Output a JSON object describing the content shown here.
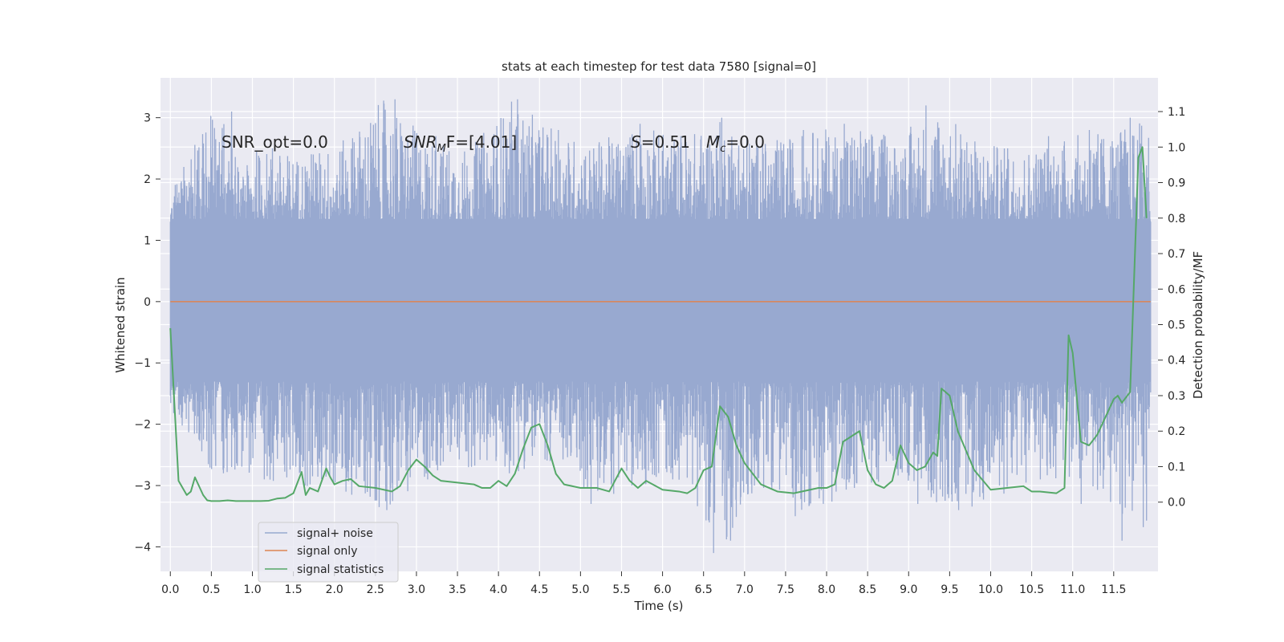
{
  "chart_data": {
    "type": "line",
    "title": "stats at each timestep for test data 7580 [signal=0]",
    "xlabel": "Time (s)",
    "ylabel_left": "Whitened strain",
    "ylabel_right": "Detection probability/MF",
    "xlim": [
      -0.12,
      12.04
    ],
    "ylim_left": [
      -4.4,
      3.65
    ],
    "ylim_right": [
      -0.195,
      1.195
    ],
    "x_ticks": [
      "0.0",
      "0.5",
      "1.0",
      "1.5",
      "2.0",
      "2.5",
      "3.0",
      "3.5",
      "4.0",
      "4.5",
      "5.0",
      "5.5",
      "6.0",
      "6.5",
      "7.0",
      "7.5",
      "8.0",
      "8.5",
      "9.0",
      "9.5",
      "10.0",
      "10.5",
      "11.0",
      "11.5"
    ],
    "y_ticks_left": [
      "3",
      "2",
      "1",
      "0",
      "−1",
      "−2",
      "−3",
      "−4"
    ],
    "y_ticks_right": [
      "1.1",
      "1.0",
      "0.9",
      "0.8",
      "0.7",
      "0.6",
      "0.5",
      "0.4",
      "0.3",
      "0.2",
      "0.1",
      "0.0"
    ],
    "grid": true,
    "legend_position": "lower-left",
    "annotations": {
      "snr_opt": "SNR_opt=0.0",
      "snr_mf_main": "SNR",
      "snr_mf_sub": "M",
      "snr_mf_rest": "F=[4.01]",
      "s_main": "S",
      "s_rest": "=0.51",
      "mc_main": "M",
      "mc_sub": "c",
      "mc_rest": "=0.0"
    },
    "series": [
      {
        "name": "signal+ noise",
        "color": "#98a9d0",
        "note": "noise envelope, t from 0 to 11.95 s",
        "x_range": [
          0.0,
          11.95
        ],
        "upper_env": [
          1.9,
          3.1,
          2.5,
          2.4,
          2.6,
          3.3,
          2.7,
          2.5,
          3.3,
          2.8,
          2.6,
          2.9,
          2.7,
          3.0,
          2.6,
          2.8,
          2.9,
          2.7,
          3.2,
          2.6,
          2.5,
          2.7,
          2.8,
          3.0
        ],
        "lower_env": [
          -1.8,
          -2.8,
          -2.9,
          -3.0,
          -3.1,
          -3.4,
          -2.9,
          -2.7,
          -2.8,
          -2.6,
          -3.3,
          -3.0,
          -2.9,
          -4.1,
          -3.0,
          -3.5,
          -3.1,
          -2.9,
          -3.3,
          -3.4,
          -3.0,
          -2.9,
          -3.3,
          -3.9
        ]
      },
      {
        "name": "signal only",
        "color": "#dd8452",
        "x": [
          0.0,
          11.95
        ],
        "y": [
          0.0,
          0.0
        ]
      },
      {
        "name": "signal statistics",
        "color": "#55a868",
        "axis": "right",
        "x": [
          0.0,
          0.1,
          0.2,
          0.25,
          0.3,
          0.4,
          0.45,
          0.5,
          0.6,
          0.7,
          0.8,
          0.9,
          1.0,
          1.1,
          1.2,
          1.3,
          1.4,
          1.5,
          1.6,
          1.65,
          1.7,
          1.8,
          1.9,
          1.95,
          2.0,
          2.1,
          2.2,
          2.3,
          2.5,
          2.7,
          2.8,
          2.9,
          3.0,
          3.1,
          3.2,
          3.3,
          3.5,
          3.7,
          3.8,
          3.9,
          4.0,
          4.1,
          4.2,
          4.3,
          4.4,
          4.5,
          4.6,
          4.7,
          4.8,
          5.0,
          5.2,
          5.35,
          5.5,
          5.6,
          5.7,
          5.8,
          6.0,
          6.2,
          6.3,
          6.4,
          6.5,
          6.6,
          6.7,
          6.8,
          6.9,
          7.0,
          7.2,
          7.4,
          7.6,
          7.8,
          7.9,
          8.0,
          8.1,
          8.2,
          8.4,
          8.5,
          8.6,
          8.7,
          8.8,
          8.9,
          9.0,
          9.1,
          9.2,
          9.3,
          9.35,
          9.4,
          9.5,
          9.6,
          9.8,
          10.0,
          10.2,
          10.4,
          10.5,
          10.6,
          10.8,
          10.9,
          10.95,
          11.0,
          11.1,
          11.2,
          11.3,
          11.4,
          11.5,
          11.55,
          11.6,
          11.7,
          11.8,
          11.85,
          11.9
        ],
        "y": [
          0.49,
          0.06,
          0.02,
          0.03,
          0.07,
          0.02,
          0.005,
          0.003,
          0.003,
          0.005,
          0.003,
          0.003,
          0.003,
          0.003,
          0.004,
          0.01,
          0.012,
          0.025,
          0.085,
          0.02,
          0.04,
          0.03,
          0.095,
          0.07,
          0.05,
          0.06,
          0.065,
          0.045,
          0.04,
          0.03,
          0.045,
          0.09,
          0.12,
          0.1,
          0.075,
          0.06,
          0.055,
          0.05,
          0.04,
          0.04,
          0.06,
          0.045,
          0.08,
          0.15,
          0.21,
          0.22,
          0.16,
          0.08,
          0.05,
          0.04,
          0.04,
          0.03,
          0.095,
          0.06,
          0.04,
          0.06,
          0.035,
          0.03,
          0.025,
          0.04,
          0.09,
          0.1,
          0.27,
          0.24,
          0.16,
          0.11,
          0.05,
          0.03,
          0.025,
          0.035,
          0.04,
          0.04,
          0.05,
          0.17,
          0.2,
          0.09,
          0.05,
          0.04,
          0.06,
          0.16,
          0.11,
          0.09,
          0.1,
          0.14,
          0.13,
          0.32,
          0.3,
          0.2,
          0.09,
          0.035,
          0.04,
          0.045,
          0.03,
          0.03,
          0.025,
          0.04,
          0.47,
          0.42,
          0.17,
          0.16,
          0.19,
          0.24,
          0.29,
          0.3,
          0.28,
          0.31,
          0.97,
          1.0,
          0.8
        ]
      }
    ]
  }
}
